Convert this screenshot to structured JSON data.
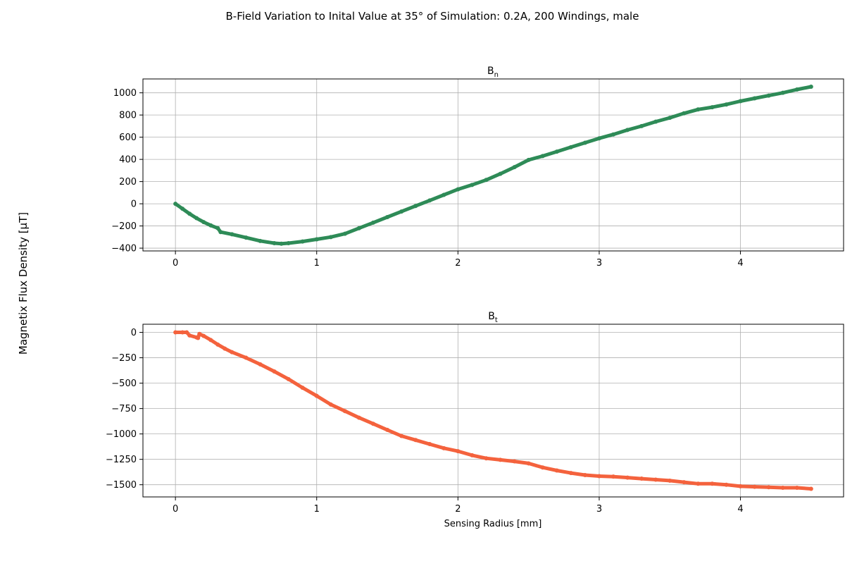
{
  "suptitle": "B-Field Variation to Inital Value at 35° of Simulation: 0.2A, 200 Windings, male",
  "shared_ylabel": "Magnetix Flux Density [μT]",
  "chart_data": [
    {
      "type": "line",
      "title_main": "B",
      "title_sub": "n",
      "xlabel": "",
      "ylabel": "",
      "xlim": [
        -0.23,
        4.73
      ],
      "ylim": [
        -425,
        1125
      ],
      "xticks": [
        0,
        1,
        2,
        3,
        4
      ],
      "yticks": [
        -400,
        -200,
        0,
        200,
        400,
        600,
        800,
        1000
      ],
      "grid": true,
      "series": [
        {
          "color": "#2e8b57",
          "x": [
            0,
            0.05,
            0.1,
            0.15,
            0.2,
            0.25,
            0.3,
            0.32,
            0.4,
            0.5,
            0.6,
            0.7,
            0.75,
            0.8,
            0.9,
            1.0,
            1.1,
            1.2,
            1.3,
            1.4,
            1.5,
            1.6,
            1.7,
            1.8,
            1.9,
            2.0,
            2.1,
            2.2,
            2.3,
            2.4,
            2.5,
            2.6,
            2.7,
            2.8,
            2.9,
            3.0,
            3.1,
            3.2,
            3.3,
            3.4,
            3.5,
            3.6,
            3.7,
            3.8,
            3.9,
            4.0,
            4.1,
            4.2,
            4.3,
            4.4,
            4.5
          ],
          "y": [
            0,
            -45,
            -90,
            -130,
            -165,
            -195,
            -220,
            -255,
            -275,
            -305,
            -335,
            -355,
            -360,
            -355,
            -340,
            -320,
            -300,
            -270,
            -220,
            -170,
            -120,
            -70,
            -20,
            30,
            80,
            130,
            170,
            215,
            270,
            330,
            395,
            430,
            470,
            510,
            550,
            590,
            625,
            665,
            700,
            740,
            775,
            815,
            850,
            870,
            895,
            925,
            950,
            975,
            1000,
            1030,
            1055
          ]
        }
      ]
    },
    {
      "type": "line",
      "title_main": "B",
      "title_sub": "t",
      "xlabel": "Sensing Radius [mm]",
      "ylabel": "",
      "xlim": [
        -0.23,
        4.73
      ],
      "ylim": [
        -1620,
        80
      ],
      "xticks": [
        0,
        1,
        2,
        3,
        4
      ],
      "yticks": [
        0,
        -250,
        -500,
        -750,
        -1000,
        -1250,
        -1500
      ],
      "grid": true,
      "series": [
        {
          "color": "#f4623d",
          "x": [
            0,
            0.05,
            0.08,
            0.1,
            0.15,
            0.16,
            0.17,
            0.2,
            0.25,
            0.3,
            0.35,
            0.4,
            0.5,
            0.6,
            0.7,
            0.8,
            0.9,
            1.0,
            1.1,
            1.2,
            1.3,
            1.4,
            1.5,
            1.6,
            1.7,
            1.8,
            1.9,
            2.0,
            2.1,
            2.2,
            2.3,
            2.4,
            2.5,
            2.6,
            2.7,
            2.8,
            2.9,
            3.0,
            3.1,
            3.2,
            3.3,
            3.4,
            3.5,
            3.6,
            3.7,
            3.8,
            3.9,
            4.0,
            4.1,
            4.2,
            4.3,
            4.4,
            4.5
          ],
          "y": [
            0,
            0,
            0,
            -30,
            -50,
            -55,
            -15,
            -35,
            -75,
            -120,
            -160,
            -195,
            -250,
            -315,
            -385,
            -460,
            -545,
            -625,
            -710,
            -775,
            -840,
            -900,
            -960,
            -1020,
            -1060,
            -1100,
            -1140,
            -1170,
            -1210,
            -1240,
            -1255,
            -1270,
            -1290,
            -1330,
            -1360,
            -1385,
            -1405,
            -1415,
            -1420,
            -1430,
            -1440,
            -1450,
            -1460,
            -1475,
            -1490,
            -1490,
            -1500,
            -1515,
            -1520,
            -1525,
            -1530,
            -1530,
            -1540
          ]
        }
      ]
    }
  ]
}
